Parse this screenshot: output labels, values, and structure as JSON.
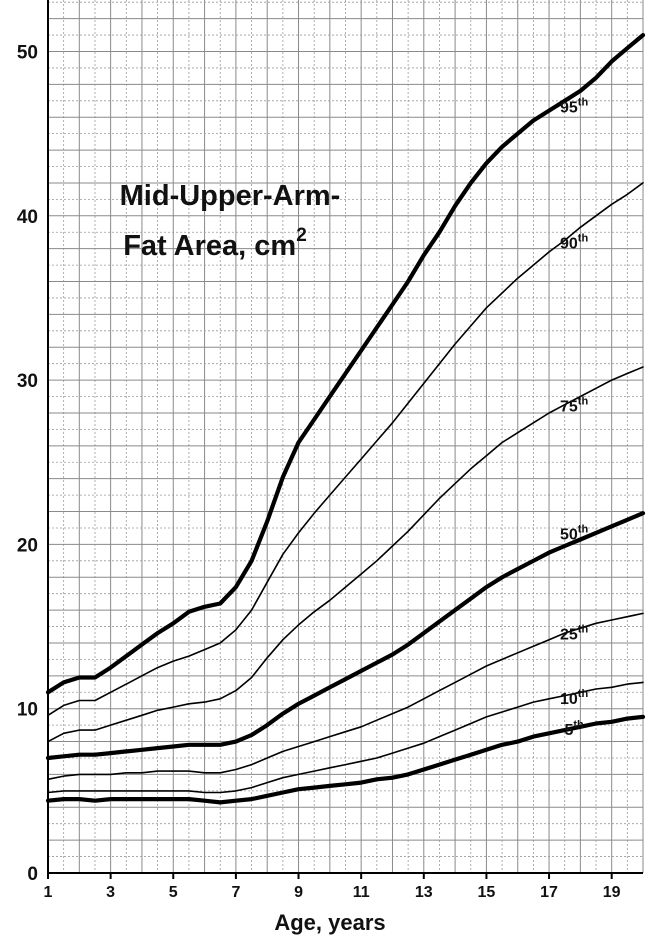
{
  "chart_data": {
    "type": "line",
    "title": "Mid-Upper-Arm-",
    "title_line2": "Fat Area, cm",
    "title_sup": "2",
    "xlabel": "Age, years",
    "ylabel": "",
    "xlim": [
      1,
      20
    ],
    "ylim": [
      0,
      53
    ],
    "xticks": [
      1,
      3,
      5,
      7,
      9,
      11,
      13,
      15,
      17,
      19
    ],
    "yticks": [
      0,
      10,
      20,
      30,
      40,
      50
    ],
    "grid": true,
    "x": [
      1,
      1.5,
      2,
      2.5,
      3,
      3.5,
      4,
      4.5,
      5,
      5.5,
      6,
      6.5,
      7,
      7.5,
      8,
      8.5,
      9,
      9.5,
      10,
      10.5,
      11,
      11.5,
      12,
      12.5,
      13,
      13.5,
      14,
      14.5,
      15,
      15.5,
      16,
      16.5,
      17,
      17.5,
      18,
      18.5,
      19,
      19.5,
      20
    ],
    "series": [
      {
        "name": "95",
        "label_suffix": "th",
        "label_x": 17.8,
        "label_y": 46.3,
        "bold": true,
        "values": [
          11.0,
          11.6,
          11.9,
          11.9,
          12.5,
          13.2,
          13.9,
          14.6,
          15.2,
          15.9,
          16.2,
          16.4,
          17.4,
          19.0,
          21.4,
          24.1,
          26.2,
          27.6,
          29.0,
          30.4,
          31.8,
          33.2,
          34.6,
          36.0,
          37.6,
          39.0,
          40.6,
          42.0,
          43.2,
          44.2,
          45.0,
          45.8,
          46.4,
          47.0,
          47.6,
          48.4,
          49.4,
          50.2,
          51.0
        ]
      },
      {
        "name": "90",
        "label_suffix": "th",
        "label_x": 17.8,
        "label_y": 38.0,
        "bold": false,
        "values": [
          9.6,
          10.2,
          10.5,
          10.5,
          11.0,
          11.5,
          12.0,
          12.5,
          12.9,
          13.2,
          13.6,
          14.0,
          14.8,
          16.0,
          17.7,
          19.4,
          20.7,
          21.9,
          23.0,
          24.1,
          25.2,
          26.3,
          27.4,
          28.6,
          29.8,
          31.0,
          32.2,
          33.3,
          34.4,
          35.3,
          36.2,
          37.0,
          37.8,
          38.5,
          39.3,
          40.0,
          40.7,
          41.3,
          42.0
        ]
      },
      {
        "name": "75",
        "label_suffix": "th",
        "label_x": 17.8,
        "label_y": 28.1,
        "bold": false,
        "values": [
          8.0,
          8.5,
          8.7,
          8.7,
          9.0,
          9.3,
          9.6,
          9.9,
          10.1,
          10.3,
          10.4,
          10.6,
          11.1,
          11.9,
          13.1,
          14.2,
          15.1,
          15.9,
          16.6,
          17.4,
          18.2,
          19.0,
          19.9,
          20.8,
          21.8,
          22.8,
          23.7,
          24.6,
          25.4,
          26.2,
          26.8,
          27.4,
          28.0,
          28.5,
          29.0,
          29.5,
          30.0,
          30.4,
          30.8
        ]
      },
      {
        "name": "50",
        "label_suffix": "th",
        "label_x": 17.8,
        "label_y": 20.3,
        "bold": true,
        "values": [
          7.0,
          7.1,
          7.2,
          7.2,
          7.3,
          7.4,
          7.5,
          7.6,
          7.7,
          7.8,
          7.8,
          7.8,
          8.0,
          8.4,
          9.0,
          9.7,
          10.3,
          10.8,
          11.3,
          11.8,
          12.3,
          12.8,
          13.3,
          13.9,
          14.6,
          15.3,
          16.0,
          16.7,
          17.4,
          18.0,
          18.5,
          19.0,
          19.5,
          19.9,
          20.3,
          20.7,
          21.1,
          21.5,
          21.9
        ]
      },
      {
        "name": "25",
        "label_suffix": "th",
        "label_x": 17.8,
        "label_y": 14.2,
        "bold": false,
        "values": [
          5.7,
          5.9,
          6.0,
          6.0,
          6.0,
          6.1,
          6.1,
          6.2,
          6.2,
          6.2,
          6.1,
          6.1,
          6.3,
          6.6,
          7.0,
          7.4,
          7.7,
          8.0,
          8.3,
          8.6,
          8.9,
          9.3,
          9.7,
          10.1,
          10.6,
          11.1,
          11.6,
          12.1,
          12.6,
          13.0,
          13.4,
          13.8,
          14.2,
          14.6,
          14.9,
          15.2,
          15.4,
          15.6,
          15.8
        ]
      },
      {
        "name": "10",
        "label_suffix": "th",
        "label_x": 17.8,
        "label_y": 10.3,
        "bold": false,
        "values": [
          4.9,
          5.0,
          5.0,
          5.0,
          5.0,
          5.0,
          5.0,
          5.0,
          5.0,
          5.0,
          4.9,
          4.9,
          5.0,
          5.2,
          5.5,
          5.8,
          6.0,
          6.2,
          6.4,
          6.6,
          6.8,
          7.0,
          7.3,
          7.6,
          7.9,
          8.3,
          8.7,
          9.1,
          9.5,
          9.8,
          10.1,
          10.4,
          10.6,
          10.8,
          11.0,
          11.2,
          11.3,
          11.5,
          11.6
        ]
      },
      {
        "name": "5",
        "label_suffix": "th",
        "label_x": 17.8,
        "label_y": 8.4,
        "bold": true,
        "values": [
          4.4,
          4.5,
          4.5,
          4.4,
          4.5,
          4.5,
          4.5,
          4.5,
          4.5,
          4.5,
          4.4,
          4.3,
          4.4,
          4.5,
          4.7,
          4.9,
          5.1,
          5.2,
          5.3,
          5.4,
          5.5,
          5.7,
          5.8,
          6.0,
          6.3,
          6.6,
          6.9,
          7.2,
          7.5,
          7.8,
          8.0,
          8.3,
          8.5,
          8.7,
          8.9,
          9.1,
          9.2,
          9.4,
          9.5
        ]
      }
    ]
  }
}
